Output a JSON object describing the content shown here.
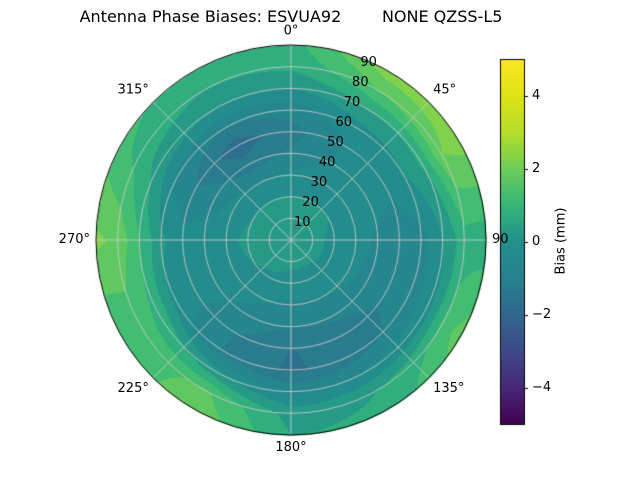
{
  "chart_data": {
    "type": "heatmap",
    "projection": "polar",
    "title": "Antenna Phase Biases: ESVUA92        NONE QZSS-L5",
    "units": "mm",
    "vmin": -5,
    "vmax": 5,
    "colormap": "viridis",
    "azimuth_deg": [
      0,
      30,
      60,
      90,
      120,
      150,
      180,
      210,
      240,
      270,
      300,
      330,
      360
    ],
    "radius_deg": [
      0,
      10,
      20,
      30,
      40,
      50,
      60,
      70,
      80,
      90
    ],
    "values": [
      [
        0.2,
        0.2,
        0.2,
        0.2,
        0.2,
        0.2,
        0.2,
        0.2,
        0.2,
        0.2,
        0.2,
        0.2,
        0.2
      ],
      [
        0.2,
        0.2,
        0.1,
        0.1,
        0.1,
        0.1,
        0.1,
        0.2,
        0.2,
        0.3,
        0.3,
        0.2,
        0.2
      ],
      [
        0.0,
        0.0,
        0.0,
        -0.1,
        -0.1,
        -0.2,
        -0.2,
        -0.1,
        0.0,
        0.1,
        0.0,
        0.0,
        0.0
      ],
      [
        -0.4,
        -0.2,
        -0.2,
        -0.3,
        -0.4,
        -0.5,
        -0.6,
        -0.4,
        -0.2,
        -0.1,
        -0.3,
        -0.5,
        -0.4
      ],
      [
        -0.9,
        -0.4,
        -0.3,
        -0.6,
        -0.7,
        -0.9,
        -1.0,
        -0.7,
        -0.3,
        -0.2,
        -0.8,
        -1.3,
        -0.9
      ],
      [
        -1.2,
        -0.5,
        -0.4,
        -0.8,
        -0.9,
        -1.3,
        -1.5,
        -1.0,
        -0.4,
        -0.3,
        -1.0,
        -1.8,
        -1.2
      ],
      [
        -0.8,
        -0.2,
        0.0,
        -0.7,
        -0.8,
        -1.2,
        -1.6,
        -1.1,
        -0.2,
        0.1,
        -0.6,
        -1.0,
        -0.8
      ],
      [
        0.0,
        0.5,
        0.6,
        0.0,
        -0.2,
        -0.4,
        -0.6,
        0.2,
        0.9,
        1.0,
        0.3,
        0.0,
        0.0
      ],
      [
        0.6,
        1.5,
        2.0,
        0.8,
        1.2,
        0.5,
        0.3,
        1.6,
        1.2,
        1.9,
        0.8,
        0.5,
        0.6
      ],
      [
        0.8,
        2.3,
        2.2,
        0.7,
        1.8,
        0.6,
        0.5,
        1.9,
        1.0,
        2.1,
        1.2,
        0.6,
        0.8
      ]
    ],
    "theta_ticks": [
      {
        "angle": 0,
        "label": "0°"
      },
      {
        "angle": 45,
        "label": "45°"
      },
      {
        "angle": 90,
        "label": "90"
      },
      {
        "angle": 135,
        "label": "135°"
      },
      {
        "angle": 180,
        "label": "180°"
      },
      {
        "angle": 225,
        "label": "225°"
      },
      {
        "angle": 270,
        "label": "270°"
      },
      {
        "angle": 315,
        "label": "315°"
      }
    ],
    "r_ticks": [
      {
        "r": 10,
        "label": "10"
      },
      {
        "r": 20,
        "label": "20"
      },
      {
        "r": 30,
        "label": "30"
      },
      {
        "r": 40,
        "label": "40"
      },
      {
        "r": 50,
        "label": "50"
      },
      {
        "r": 60,
        "label": "60"
      },
      {
        "r": 70,
        "label": "70"
      },
      {
        "r": 80,
        "label": "80"
      },
      {
        "r": 90,
        "label": "90"
      }
    ],
    "colorbar": {
      "label": "Bias (mm)",
      "ticks": [
        4,
        2,
        0,
        -2,
        -4
      ],
      "tick_labels": [
        "4",
        "2",
        "0",
        "−2",
        "−4"
      ],
      "range": [
        -5,
        5
      ]
    },
    "grid": true,
    "grid_color": "#c8c8c8",
    "contour_band_width": 0.5
  }
}
